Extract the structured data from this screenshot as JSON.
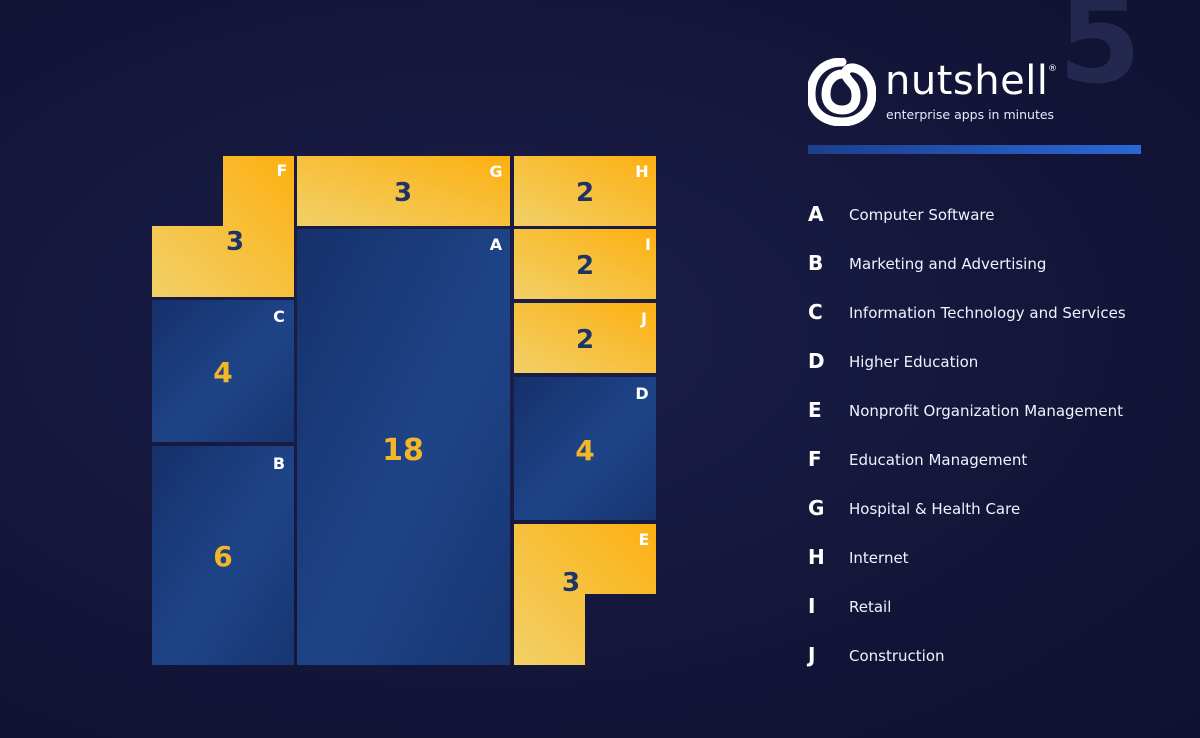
{
  "brand": {
    "name": "nutshell",
    "tagline": "enterprise apps in minutes",
    "registered_mark": "®",
    "page_number": "5"
  },
  "colors": {
    "blue_tile": "#1b3a78",
    "yellow_tile": "#f6b41c",
    "blue_value_text": "#f2b628",
    "yellow_value_text": "#1e3366",
    "background": "#14163a"
  },
  "chart_data": {
    "type": "treemap",
    "items": [
      {
        "letter": "A",
        "label": "Computer Software",
        "value": 18,
        "color": "blue"
      },
      {
        "letter": "B",
        "label": "Marketing and Advertising",
        "value": 6,
        "color": "blue"
      },
      {
        "letter": "C",
        "label": "Information Technology and Services",
        "value": 4,
        "color": "blue"
      },
      {
        "letter": "D",
        "label": "Higher Education",
        "value": 4,
        "color": "blue"
      },
      {
        "letter": "E",
        "label": "Nonprofit Organization Management",
        "value": 3,
        "color": "yellow"
      },
      {
        "letter": "F",
        "label": "Education Management",
        "value": 3,
        "color": "yellow"
      },
      {
        "letter": "G",
        "label": "Hospital & Health Care",
        "value": 3,
        "color": "yellow"
      },
      {
        "letter": "H",
        "label": "Internet",
        "value": 2,
        "color": "yellow"
      },
      {
        "letter": "I",
        "label": "Retail",
        "value": 2,
        "color": "yellow"
      },
      {
        "letter": "J",
        "label": "Construction",
        "value": 2,
        "color": "yellow"
      }
    ]
  }
}
